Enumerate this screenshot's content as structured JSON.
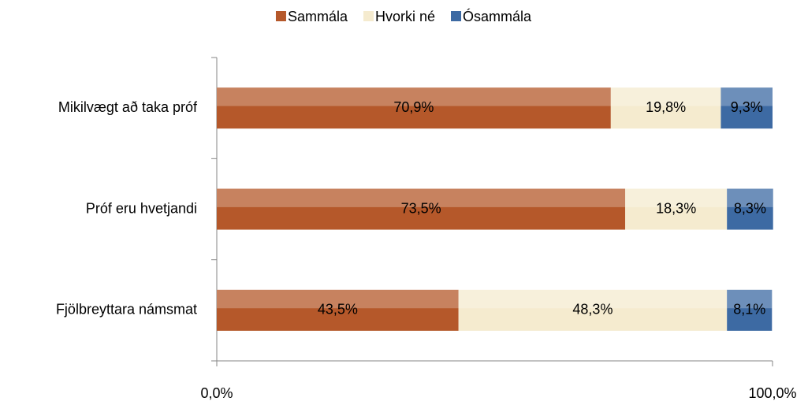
{
  "chart_data": {
    "type": "stacked-bar-horizontal",
    "categories": [
      "Mikilvægt að taka próf",
      "Próf eru hvetjandi",
      "Fjölbreyttara námsmat"
    ],
    "series": [
      {
        "name": "Sammála",
        "color": "#b5582a",
        "values": [
          70.9,
          73.5,
          43.5
        ],
        "value_labels": [
          "70,9%",
          "73,5%",
          "43,5%"
        ]
      },
      {
        "name": "Hvorki né",
        "color": "#f5ebcf",
        "values": [
          19.8,
          18.3,
          48.3
        ],
        "value_labels": [
          "19,8%",
          "18,3%",
          "48,3%"
        ]
      },
      {
        "name": "Ósammála",
        "color": "#3d6aa3",
        "values": [
          9.3,
          8.3,
          8.1
        ],
        "value_labels": [
          "9,3%",
          "8,3%",
          "8,1%"
        ]
      }
    ],
    "xlim": [
      0,
      100
    ],
    "xticks": [
      {
        "value": 0,
        "label": "0,0%"
      },
      {
        "value": 100,
        "label": "100,0%"
      }
    ],
    "legend": "top"
  }
}
